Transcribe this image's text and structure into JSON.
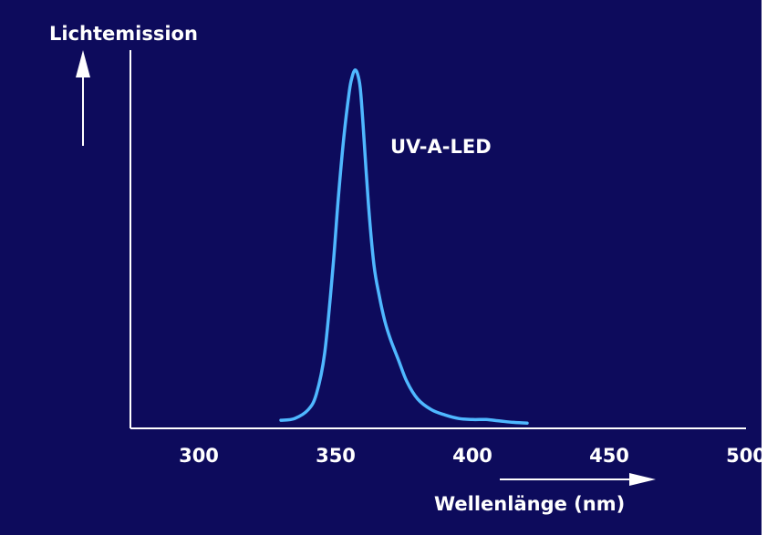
{
  "colors": {
    "background": "#0d0b5c",
    "curve": "#4fb8ff",
    "axes": "#ffffff",
    "text": "#ffffff"
  },
  "chart_data": {
    "type": "line",
    "title": "",
    "ylabel": "Lichtemission",
    "xlabel": "Wellenlänge (nm)",
    "xlim": [
      275,
      500
    ],
    "ylim": [
      0,
      1
    ],
    "xticks": [
      "300",
      "350",
      "400",
      "450",
      "500"
    ],
    "y_tick_labels_shown": false,
    "grid": false,
    "series": [
      {
        "name": "UV-A-LED",
        "x": [
          330,
          335,
          340,
          343,
          346,
          349,
          351,
          353,
          355,
          356,
          357,
          358,
          359,
          360,
          362,
          364,
          366,
          368,
          370,
          373,
          376,
          380,
          385,
          390,
          395,
          400,
          405,
          410,
          415,
          420
        ],
        "y": [
          0.01,
          0.015,
          0.04,
          0.085,
          0.2,
          0.44,
          0.64,
          0.81,
          0.94,
          0.98,
          1.0,
          0.99,
          0.95,
          0.85,
          0.62,
          0.45,
          0.36,
          0.29,
          0.24,
          0.18,
          0.12,
          0.07,
          0.04,
          0.025,
          0.015,
          0.012,
          0.012,
          0.008,
          0.004,
          0.002
        ]
      }
    ]
  }
}
